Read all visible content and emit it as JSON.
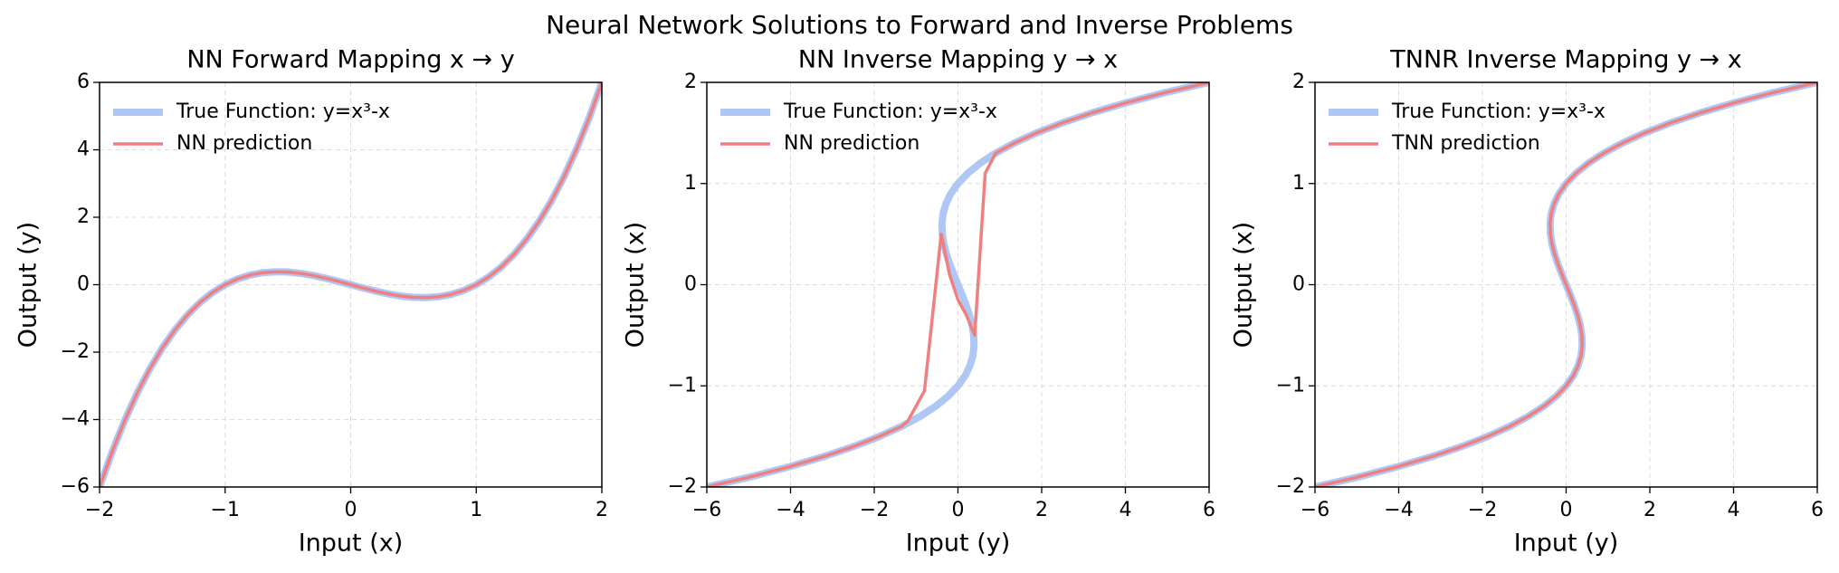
{
  "title": "Neural Network Solutions to Forward and Inverse Problems",
  "chart_data": [
    {
      "type": "line",
      "title": "NN Forward Mapping x → y",
      "xlabel": "Input (x)",
      "ylabel": "Output (y)",
      "xlim": [
        -2,
        2
      ],
      "ylim": [
        -6,
        6
      ],
      "xticks": [
        {
          "value": -2,
          "label": "−2"
        },
        {
          "value": -1,
          "label": "−1"
        },
        0,
        1,
        2
      ],
      "yticks": [
        {
          "value": -6,
          "label": "−6"
        },
        {
          "value": -4,
          "label": "−4"
        },
        {
          "value": -2,
          "label": "−2"
        },
        0,
        2,
        4,
        6
      ],
      "grid": true,
      "legend": "upper left",
      "series": [
        {
          "name": "True Function: y=x³-x",
          "color": "#aec7f5",
          "x": [
            -2,
            -1.9,
            -1.8,
            -1.7,
            -1.6,
            -1.5,
            -1.4,
            -1.3,
            -1.2,
            -1.1,
            -1,
            -0.9,
            -0.8,
            -0.7,
            -0.6,
            -0.5,
            -0.4,
            -0.3,
            -0.2,
            -0.1,
            0,
            0.1,
            0.2,
            0.3,
            0.4,
            0.5,
            0.6,
            0.7,
            0.8,
            0.9,
            1,
            1.1,
            1.2,
            1.3,
            1.4,
            1.5,
            1.6,
            1.7,
            1.8,
            1.9,
            2
          ],
          "values": [
            -6,
            -4.959,
            -4.032,
            -3.213,
            -2.496,
            -1.875,
            -1.344,
            -0.897,
            -0.528,
            -0.231,
            0,
            0.171,
            0.288,
            0.357,
            0.384,
            0.375,
            0.336,
            0.273,
            0.192,
            0.099,
            0,
            -0.099,
            -0.192,
            -0.273,
            -0.336,
            -0.375,
            -0.384,
            -0.357,
            -0.288,
            -0.171,
            0,
            0.231,
            0.528,
            0.897,
            1.344,
            1.875,
            2.496,
            3.213,
            4.032,
            4.959,
            6
          ]
        },
        {
          "name": "NN prediction",
          "color": "#f08080",
          "x": [
            -2,
            -1.9,
            -1.8,
            -1.7,
            -1.6,
            -1.5,
            -1.4,
            -1.3,
            -1.2,
            -1.1,
            -1,
            -0.9,
            -0.8,
            -0.7,
            -0.6,
            -0.5,
            -0.4,
            -0.3,
            -0.2,
            -0.1,
            0,
            0.1,
            0.2,
            0.3,
            0.4,
            0.5,
            0.6,
            0.7,
            0.8,
            0.9,
            1,
            1.1,
            1.2,
            1.3,
            1.4,
            1.5,
            1.6,
            1.7,
            1.8,
            1.9,
            2
          ],
          "values": [
            -6,
            -4.959,
            -4.032,
            -3.213,
            -2.496,
            -1.875,
            -1.344,
            -0.897,
            -0.528,
            -0.231,
            0,
            0.171,
            0.288,
            0.357,
            0.384,
            0.375,
            0.336,
            0.273,
            0.192,
            0.099,
            0,
            -0.099,
            -0.192,
            -0.273,
            -0.336,
            -0.375,
            -0.384,
            -0.357,
            -0.288,
            -0.171,
            0,
            0.231,
            0.528,
            0.897,
            1.344,
            1.875,
            2.496,
            3.213,
            4.032,
            4.959,
            6
          ]
        }
      ]
    },
    {
      "type": "line",
      "title": "NN Inverse Mapping y → x",
      "xlabel": "Input (y)",
      "ylabel": "Output (x)",
      "xlim": [
        -6,
        6
      ],
      "ylim": [
        -2,
        2
      ],
      "xticks": [
        {
          "value": -6,
          "label": "−6"
        },
        {
          "value": -4,
          "label": "−4"
        },
        {
          "value": -2,
          "label": "−2"
        },
        0,
        2,
        4,
        6
      ],
      "yticks": [
        {
          "value": -2,
          "label": "−2"
        },
        {
          "value": -1,
          "label": "−1"
        },
        0,
        1,
        2
      ],
      "grid": true,
      "legend": "upper left",
      "series": [
        {
          "name": "True Function: y=x³-x",
          "color": "#aec7f5",
          "x": [
            -6,
            -4.959,
            -4.032,
            -3.213,
            -2.496,
            -1.875,
            -1.344,
            -0.897,
            -0.528,
            -0.231,
            0,
            0.171,
            0.288,
            0.357,
            0.384,
            0.375,
            0.336,
            0.273,
            0.192,
            0.099,
            0,
            -0.099,
            -0.192,
            -0.273,
            -0.336,
            -0.375,
            -0.384,
            -0.357,
            -0.288,
            -0.171,
            0,
            0.231,
            0.528,
            0.897,
            1.344,
            1.875,
            2.496,
            3.213,
            4.032,
            4.959,
            6
          ],
          "values": [
            -2,
            -1.9,
            -1.8,
            -1.7,
            -1.6,
            -1.5,
            -1.4,
            -1.3,
            -1.2,
            -1.1,
            -1,
            -0.9,
            -0.8,
            -0.7,
            -0.6,
            -0.5,
            -0.4,
            -0.3,
            -0.2,
            -0.1,
            0,
            0.1,
            0.2,
            0.3,
            0.4,
            0.5,
            0.6,
            0.7,
            0.8,
            0.9,
            1,
            1.1,
            1.2,
            1.3,
            1.4,
            1.5,
            1.6,
            1.7,
            1.8,
            1.9,
            2
          ]
        },
        {
          "name": "NN prediction",
          "color": "#f08080",
          "x": [
            -6,
            -4.959,
            -4.032,
            -3.213,
            -2.496,
            -1.875,
            -1.344,
            -1.2,
            -0.8,
            -0.4,
            -0.3,
            -0.2,
            0,
            0.2,
            0.4,
            0.65,
            0.9,
            1.344,
            1.875,
            2.496,
            3.213,
            4.032,
            4.959,
            6
          ],
          "values": [
            -2,
            -1.9,
            -1.8,
            -1.7,
            -1.6,
            -1.5,
            -1.4,
            -1.35,
            -1.05,
            0.5,
            0.3,
            0.1,
            -0.15,
            -0.3,
            -0.5,
            1.1,
            1.3,
            1.4,
            1.5,
            1.6,
            1.7,
            1.8,
            1.9,
            2
          ]
        }
      ]
    },
    {
      "type": "line",
      "title": "TNNR Inverse Mapping y → x",
      "xlabel": "Input (y)",
      "ylabel": "Output (x)",
      "xlim": [
        -6,
        6
      ],
      "ylim": [
        -2,
        2
      ],
      "xticks": [
        {
          "value": -6,
          "label": "−6"
        },
        {
          "value": -4,
          "label": "−4"
        },
        {
          "value": -2,
          "label": "−2"
        },
        0,
        2,
        4,
        6
      ],
      "yticks": [
        {
          "value": -2,
          "label": "−2"
        },
        {
          "value": -1,
          "label": "−1"
        },
        0,
        1,
        2
      ],
      "grid": true,
      "legend": "upper left",
      "series": [
        {
          "name": "True Function: y=x³-x",
          "color": "#aec7f5",
          "x": [
            -6,
            -4.959,
            -4.032,
            -3.213,
            -2.496,
            -1.875,
            -1.344,
            -0.897,
            -0.528,
            -0.231,
            0,
            0.171,
            0.288,
            0.357,
            0.384,
            0.375,
            0.336,
            0.273,
            0.192,
            0.099,
            0,
            -0.099,
            -0.192,
            -0.273,
            -0.336,
            -0.375,
            -0.384,
            -0.357,
            -0.288,
            -0.171,
            0,
            0.231,
            0.528,
            0.897,
            1.344,
            1.875,
            2.496,
            3.213,
            4.032,
            4.959,
            6
          ],
          "values": [
            -2,
            -1.9,
            -1.8,
            -1.7,
            -1.6,
            -1.5,
            -1.4,
            -1.3,
            -1.2,
            -1.1,
            -1,
            -0.9,
            -0.8,
            -0.7,
            -0.6,
            -0.5,
            -0.4,
            -0.3,
            -0.2,
            -0.1,
            0,
            0.1,
            0.2,
            0.3,
            0.4,
            0.5,
            0.6,
            0.7,
            0.8,
            0.9,
            1,
            1.1,
            1.2,
            1.3,
            1.4,
            1.5,
            1.6,
            1.7,
            1.8,
            1.9,
            2
          ]
        },
        {
          "name": "TNN prediction",
          "color": "#f08080",
          "x": [
            -6,
            -4.959,
            -4.032,
            -3.213,
            -2.496,
            -1.875,
            -1.344,
            -0.897,
            -0.528,
            -0.231,
            0,
            0.171,
            0.288,
            0.357,
            0.384,
            0.375,
            0.336,
            0.273,
            0.192,
            0.099,
            0,
            -0.099,
            -0.192,
            -0.273,
            -0.336,
            -0.375,
            -0.384,
            -0.357,
            -0.288,
            -0.171,
            0,
            0.231,
            0.528,
            0.897,
            1.344,
            1.875,
            2.496,
            3.213,
            4.032,
            4.959,
            6
          ],
          "values": [
            -2,
            -1.9,
            -1.8,
            -1.7,
            -1.6,
            -1.5,
            -1.4,
            -1.3,
            -1.2,
            -1.1,
            -1,
            -0.9,
            -0.8,
            -0.7,
            -0.6,
            -0.5,
            -0.4,
            -0.3,
            -0.2,
            -0.1,
            0,
            0.1,
            0.2,
            0.3,
            0.4,
            0.5,
            0.6,
            0.7,
            0.8,
            0.9,
            1,
            1.1,
            1.2,
            1.3,
            1.4,
            1.5,
            1.6,
            1.7,
            1.8,
            1.9,
            2
          ]
        }
      ]
    }
  ]
}
